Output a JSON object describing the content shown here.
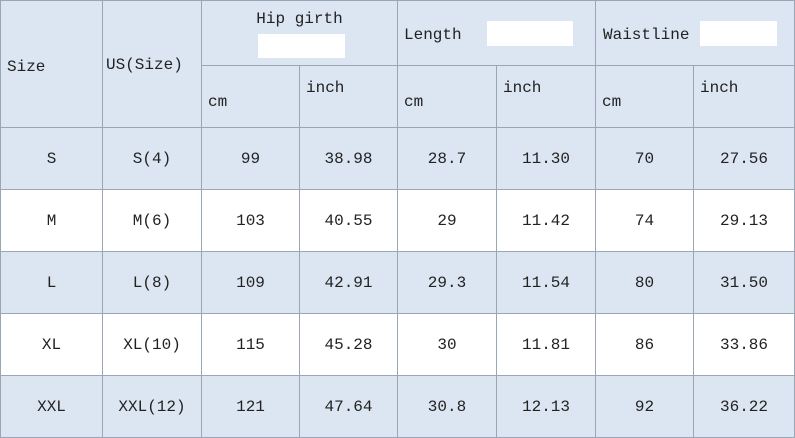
{
  "table": {
    "header": {
      "size": "Size",
      "us_size": "US(Size)",
      "groups": [
        {
          "label": "Hip girth",
          "units": [
            "cm",
            "inch"
          ]
        },
        {
          "label": "Length",
          "units": [
            "cm",
            "inch"
          ]
        },
        {
          "label": "Waistline",
          "units": [
            "cm",
            "inch"
          ]
        }
      ]
    },
    "rows": [
      [
        "S",
        "S(4)",
        "99",
        "38.98",
        "28.7",
        "11.30",
        "70",
        "27.56"
      ],
      [
        "M",
        "M(6)",
        "103",
        "40.55",
        "29",
        "11.42",
        "74",
        "29.13"
      ],
      [
        "L",
        "L(8)",
        "109",
        "42.91",
        "29.3",
        "11.54",
        "80",
        "31.50"
      ],
      [
        "XL",
        "XL(10)",
        "115",
        "45.28",
        "30",
        "11.81",
        "86",
        "33.86"
      ],
      [
        "XXL",
        "XXL(12)",
        "121",
        "47.64",
        "30.8",
        "12.13",
        "92",
        "36.22"
      ]
    ]
  }
}
